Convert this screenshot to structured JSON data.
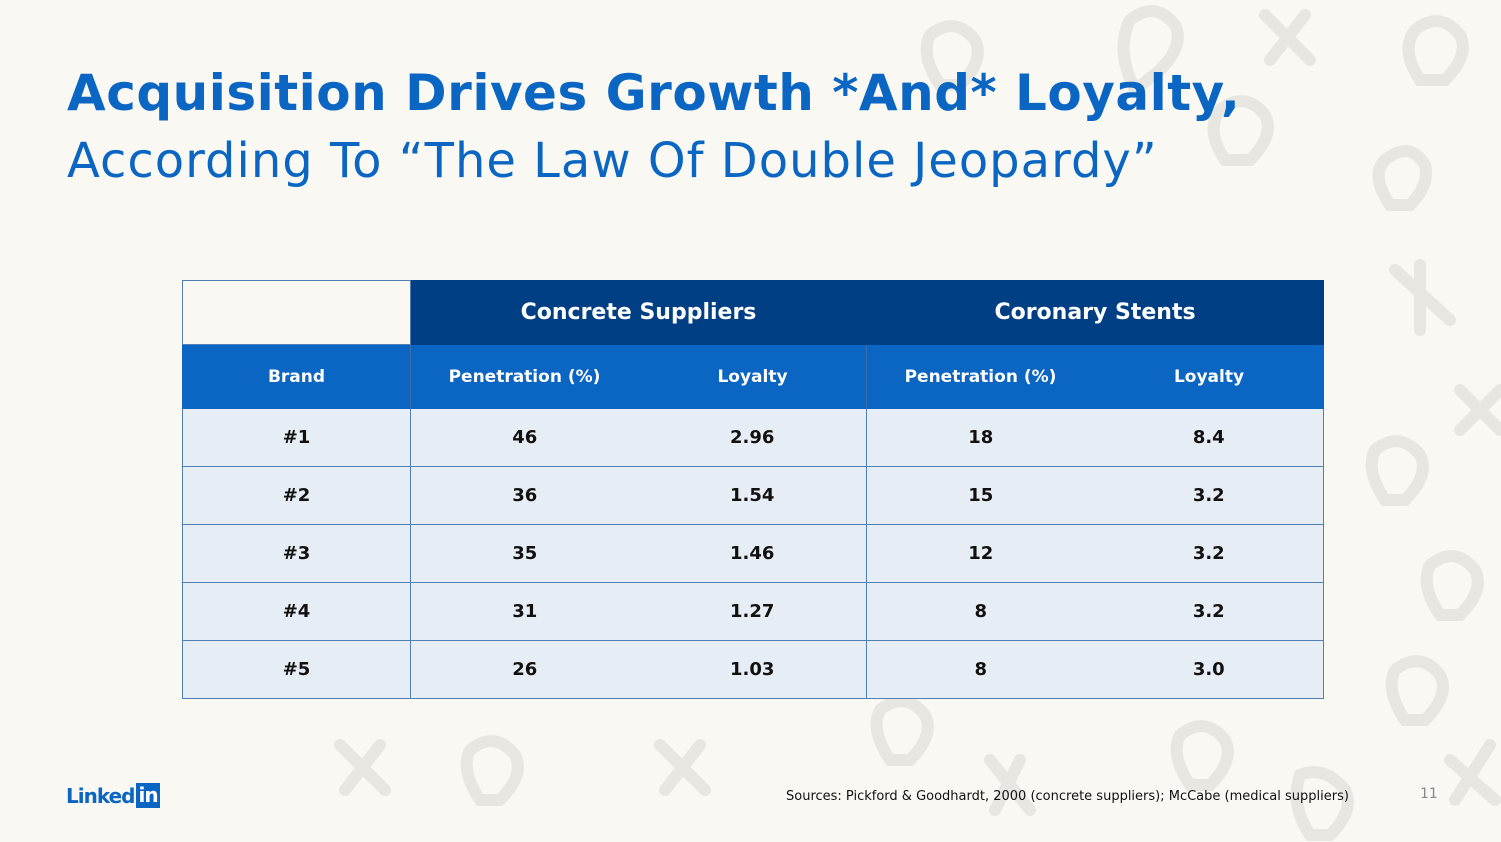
{
  "title": {
    "line1": "Acquisition Drives Growth *And* Loyalty,",
    "line2": "According To “The Law Of Double Jeopardy”"
  },
  "table": {
    "groups": [
      "Concrete Suppliers",
      "Coronary Stents"
    ],
    "columns": [
      "Brand",
      "Penetration (%)",
      "Loyalty",
      "Penetration (%)",
      "Loyalty"
    ],
    "rows": [
      [
        "#1",
        "46",
        "2.96",
        "18",
        "8.4"
      ],
      [
        "#2",
        "36",
        "1.54",
        "15",
        "3.2"
      ],
      [
        "#3",
        "35",
        "1.46",
        "12",
        "3.2"
      ],
      [
        "#4",
        "31",
        "1.27",
        "8",
        "3.2"
      ],
      [
        "#5",
        "26",
        "1.03",
        "8",
        "3.0"
      ]
    ]
  },
  "footer": {
    "logo_text": "Linked",
    "logo_in": "in",
    "sources": "Sources: Pickford & Goodhardt, 2000 (concrete suppliers); McCabe (medical suppliers)",
    "page_number": "11"
  },
  "colors": {
    "brand_blue": "#0a66c2",
    "dark_blue": "#003f84",
    "row_bg": "#e7edf5",
    "background": "#faf8f2"
  }
}
